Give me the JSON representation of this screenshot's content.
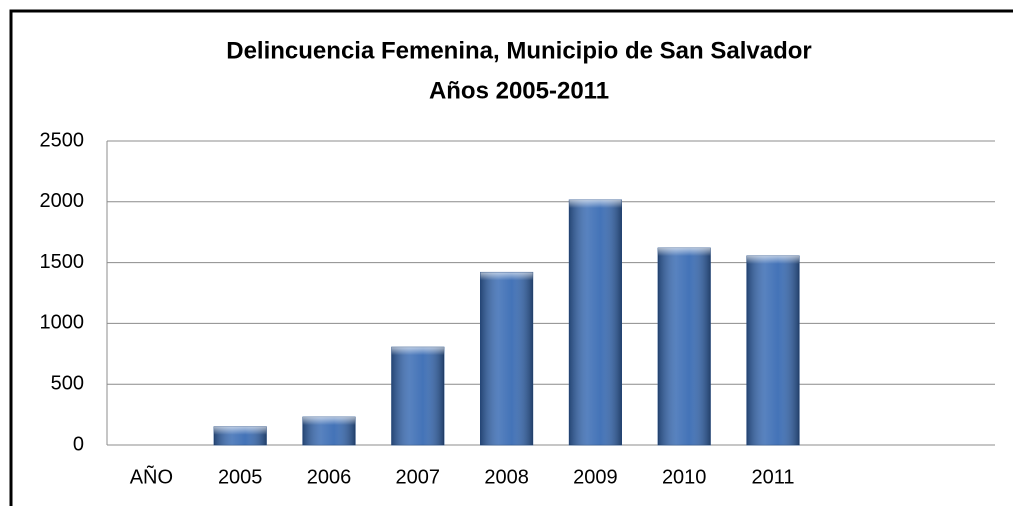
{
  "chart_data": {
    "type": "bar",
    "title": "Delincuencia Femenina, Municipio de San Salvador",
    "subtitle": "Años 2005-2011",
    "categories": [
      "AÑO",
      "2005",
      "2006",
      "2007",
      "2008",
      "2009",
      "2010",
      "2011",
      null,
      null
    ],
    "values": [
      null,
      150,
      230,
      805,
      1420,
      2015,
      1620,
      1555,
      null,
      null
    ],
    "color": "#3a6cb4",
    "ylim": [
      0,
      2500
    ],
    "yticks": [
      0,
      500,
      1000,
      1500,
      2000,
      2500
    ],
    "grid": true
  }
}
